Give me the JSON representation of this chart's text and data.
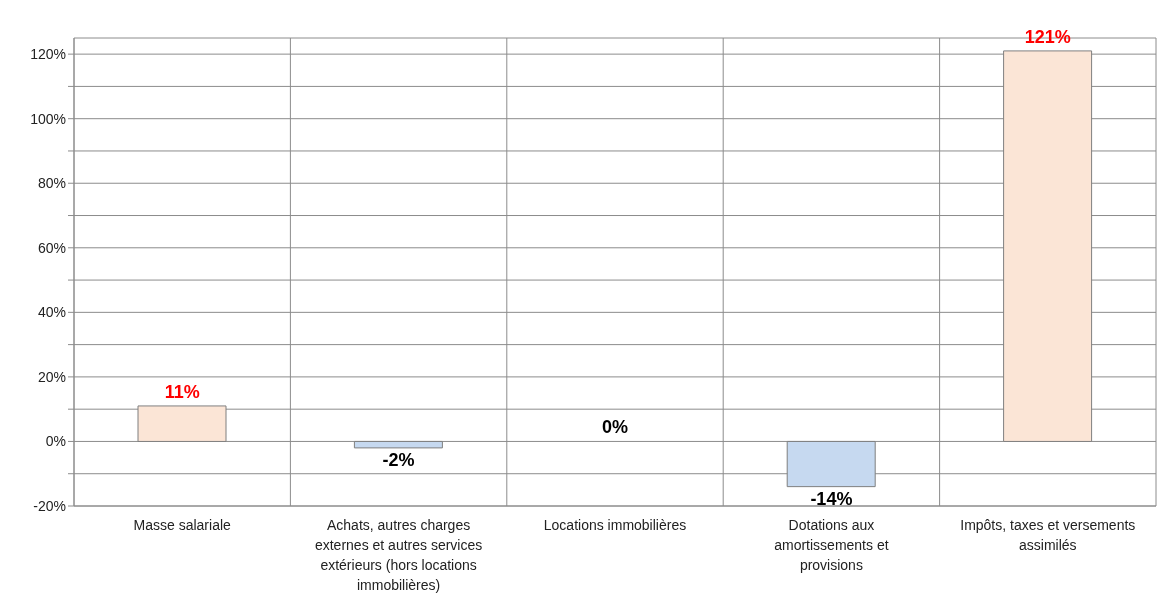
{
  "chart_data": {
    "type": "bar",
    "categories": [
      "Masse salariale",
      "Achats, autres charges externes et autres services extérieurs (hors locations immobilières)",
      "Locations immobilières",
      "Dotations aux amortissements et provisions",
      "Impôts, taxes et versements assimilés"
    ],
    "values": [
      11,
      -2,
      0,
      -14,
      121
    ],
    "colors": [
      "#fbe5d6",
      "#c6d9f0",
      "#c6d9f0",
      "#c6d9f0",
      "#fbe5d6"
    ],
    "value_labels": [
      "11%",
      "-2%",
      "0%",
      "-14%",
      "121%"
    ],
    "ylim": [
      -20,
      125
    ],
    "yticks": [
      {
        "value": -20,
        "label": "-20%"
      },
      {
        "value": -10,
        "label": null
      },
      {
        "value": 0,
        "label": "0%"
      },
      {
        "value": 10,
        "label": null
      },
      {
        "value": 20,
        "label": "20%"
      },
      {
        "value": 30,
        "label": null
      },
      {
        "value": 40,
        "label": "40%"
      },
      {
        "value": 50,
        "label": null
      },
      {
        "value": 60,
        "label": "60%"
      },
      {
        "value": 70,
        "label": null
      },
      {
        "value": 80,
        "label": "80%"
      },
      {
        "value": 90,
        "label": null
      },
      {
        "value": 100,
        "label": "100%"
      },
      {
        "value": 110,
        "label": null
      },
      {
        "value": 120,
        "label": "120%"
      }
    ],
    "grid": true
  }
}
